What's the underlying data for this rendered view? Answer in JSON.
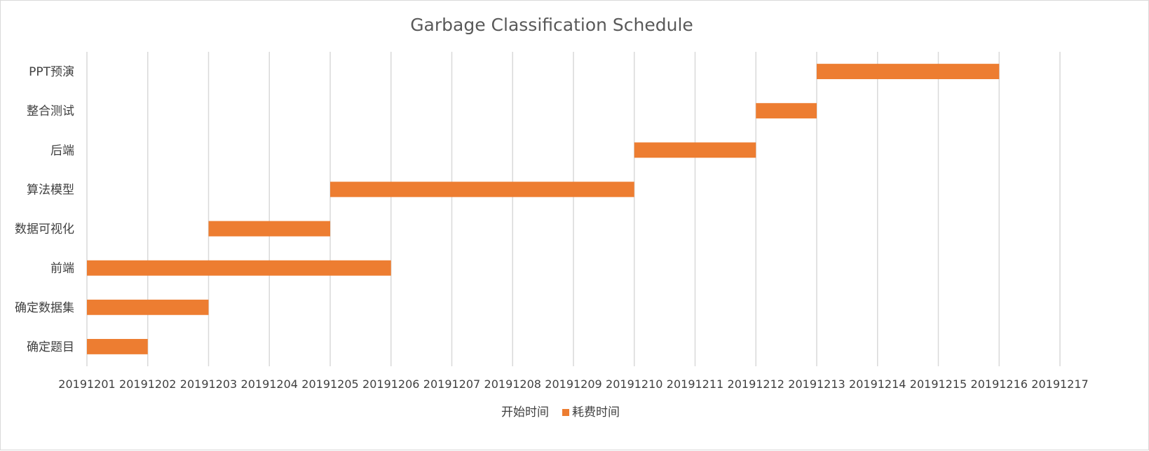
{
  "chart_data": {
    "type": "bar",
    "subtype": "gantt (horizontal stacked bar with invisible start series)",
    "title": "Garbage Classification Schedule",
    "categories": [
      "确定题目",
      "确定数据集",
      "前端",
      "数据可视化",
      "算法模型",
      "后端",
      "整合测试",
      "PPT预演"
    ],
    "x_tick_labels": [
      "20191201",
      "20191202",
      "20191203",
      "20191204",
      "20191205",
      "20191206",
      "20191207",
      "20191208",
      "20191209",
      "20191210",
      "20191211",
      "20191212",
      "20191213",
      "20191214",
      "20191215",
      "20191216",
      "20191217"
    ],
    "xlim": [
      20191201,
      20191217
    ],
    "series": [
      {
        "name": "开始时间",
        "values": [
          20191201,
          20191201,
          20191201,
          20191203,
          20191205,
          20191210,
          20191212,
          20191213
        ],
        "color": "none"
      },
      {
        "name": "耗费时间",
        "values": [
          1,
          2,
          5,
          2,
          5,
          2,
          1,
          3
        ],
        "color": "#ED7D31"
      }
    ],
    "grid": "vertical",
    "legend": {
      "position": "bottom"
    }
  }
}
